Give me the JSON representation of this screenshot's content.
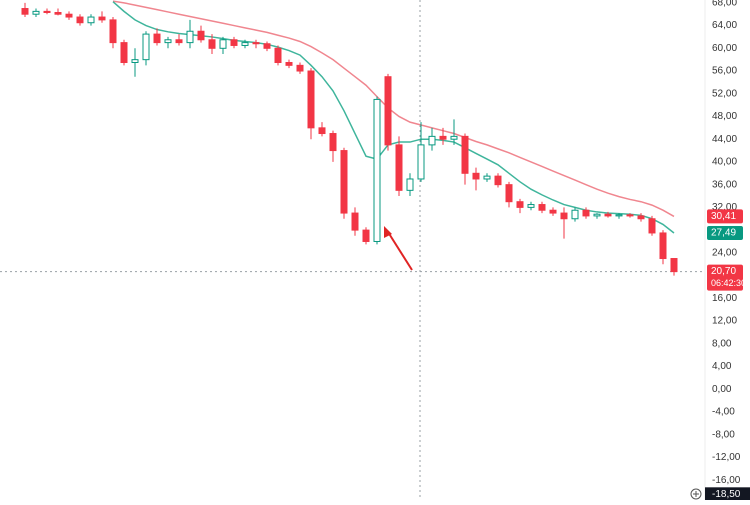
{
  "chart_data": {
    "type": "candlestick",
    "open": [
      67,
      66,
      66.5,
      66.3,
      66,
      65.5,
      64.5,
      65.5,
      65,
      61,
      57.5,
      58,
      62.5,
      61,
      61.5,
      61,
      63,
      61.5,
      60,
      61.5,
      60.5,
      61,
      60.8,
      60,
      57.5,
      57,
      56,
      46,
      45,
      42,
      31,
      28,
      26,
      55,
      43,
      35,
      37,
      43,
      44.5,
      44,
      44.5,
      38,
      37,
      37.5,
      36,
      33,
      32,
      32.5,
      31.5,
      31,
      30,
      31.5,
      30.5,
      30.8,
      30.5,
      30.7,
      30.5,
      30,
      27.5,
      23
    ],
    "high": [
      68,
      67,
      67,
      67,
      66.5,
      66,
      66,
      66.5,
      65.5,
      61.5,
      60,
      63,
      63.5,
      62,
      62.5,
      65,
      64,
      62.5,
      62,
      62,
      61.5,
      61.5,
      61.2,
      60.5,
      58,
      57.5,
      56.5,
      47,
      45.5,
      42.5,
      32,
      28.5,
      51.5,
      55.5,
      44.5,
      38,
      47,
      46,
      46,
      47.5,
      45,
      39,
      38,
      38,
      36.5,
      33.5,
      33,
      33,
      32,
      32,
      32,
      32,
      31,
      31.2,
      31,
      31,
      31,
      30.5,
      28,
      23
    ],
    "low": [
      65.5,
      65.5,
      66,
      65.8,
      65,
      64,
      64,
      64.5,
      60,
      57,
      55,
      57,
      60.5,
      60,
      60.5,
      60,
      61,
      59,
      59,
      60,
      60,
      60,
      59.5,
      57,
      56.5,
      55.5,
      44,
      44.5,
      40,
      30,
      27,
      25.5,
      25.5,
      42,
      34,
      34,
      36.5,
      42,
      43,
      43,
      36,
      35,
      36.5,
      35.5,
      32,
      31,
      31.5,
      31,
      30.5,
      26.5,
      29.5,
      30,
      30,
      30.2,
      30,
      30.2,
      29.5,
      27,
      22,
      20
    ],
    "close": [
      66,
      66.5,
      66.3,
      66,
      65.5,
      64.5,
      65.5,
      65,
      61,
      57.5,
      58,
      62.5,
      61,
      61.5,
      61,
      63,
      61.5,
      60,
      61.5,
      60.5,
      61,
      60.8,
      60,
      57.5,
      57,
      56,
      46,
      45,
      42,
      31,
      28,
      26,
      51,
      43,
      35,
      37,
      43,
      44.5,
      44,
      44.5,
      38,
      37,
      37.5,
      36,
      33,
      32,
      32.5,
      31.5,
      31,
      30,
      31.5,
      30.5,
      30.8,
      30.5,
      30.7,
      30.5,
      30,
      27.5,
      23,
      20.7
    ],
    "up_color": "#089981",
    "down_color": "#f23645",
    "series": [
      {
        "color": "#f0868f",
        "values": [
          null,
          null,
          null,
          null,
          null,
          null,
          null,
          null,
          68.3,
          68,
          67.6,
          67.2,
          66.8,
          66.4,
          66,
          65.6,
          65.2,
          64.8,
          64.4,
          64,
          63.6,
          63.2,
          62.8,
          62.3,
          61.8,
          61.2,
          60.3,
          59.2,
          58,
          56.5,
          55,
          53.5,
          51.5,
          49.5,
          48,
          47,
          46.5,
          46,
          45.5,
          45,
          44.3,
          43.6,
          43,
          42.3,
          41.6,
          40.8,
          40,
          39.2,
          38.4,
          37.6,
          36.8,
          36,
          35.2,
          34.5,
          33.9,
          33.4,
          33,
          32.4,
          31.5,
          30.41
        ]
      },
      {
        "color": "#3fb59c",
        "values": [
          null,
          null,
          null,
          null,
          null,
          null,
          null,
          null,
          68.2,
          66.5,
          65,
          64,
          63.3,
          62.9,
          62.6,
          62.4,
          62.2,
          62,
          61.7,
          61.4,
          61.2,
          61,
          60.7,
          60.2,
          59.6,
          58.8,
          57,
          55,
          52.5,
          49,
          45,
          41,
          40.5,
          43,
          43.5,
          43.5,
          44,
          44,
          43.8,
          43.5,
          42.5,
          41.5,
          40.5,
          39.5,
          38,
          36.5,
          35.2,
          34.2,
          33.3,
          32.5,
          32,
          31.5,
          31.2,
          31,
          30.9,
          30.8,
          30.6,
          30,
          29,
          27.49
        ]
      }
    ],
    "ylim": [
      -19.5,
      68.5
    ],
    "yticks": [
      {
        "value": 68,
        "label": "68,00"
      },
      {
        "value": 64,
        "label": "64,00"
      },
      {
        "value": 60,
        "label": "60,00"
      },
      {
        "value": 56,
        "label": "56,00"
      },
      {
        "value": 52,
        "label": "52,00"
      },
      {
        "value": 48,
        "label": "48,00"
      },
      {
        "value": 44,
        "label": "44,00"
      },
      {
        "value": 40,
        "label": "40,00"
      },
      {
        "value": 36,
        "label": "36,00"
      },
      {
        "value": 32,
        "label": "32,00"
      },
      {
        "value": 24,
        "label": "24,00"
      },
      {
        "value": 16,
        "label": "16,00"
      },
      {
        "value": 12,
        "label": "12,00"
      },
      {
        "value": 8,
        "label": "8,00"
      },
      {
        "value": 4,
        "label": "4,00"
      },
      {
        "value": 0,
        "label": "0,00"
      },
      {
        "value": -4,
        "label": "-4,00"
      },
      {
        "value": -8,
        "label": "-8,00"
      },
      {
        "value": -12,
        "label": "-12,00"
      },
      {
        "value": -16,
        "label": "-16,00"
      }
    ],
    "price_tags": [
      {
        "value": 30.41,
        "label": "30,41",
        "color": "#f23645"
      },
      {
        "value": 27.49,
        "label": "27,49",
        "color": "#089981"
      },
      {
        "value": 20.7,
        "label": "20,70",
        "color": "#f23645",
        "countdown": "06:42:30"
      }
    ],
    "crosshair": {
      "value": -18.5,
      "label": "-18,50"
    }
  }
}
